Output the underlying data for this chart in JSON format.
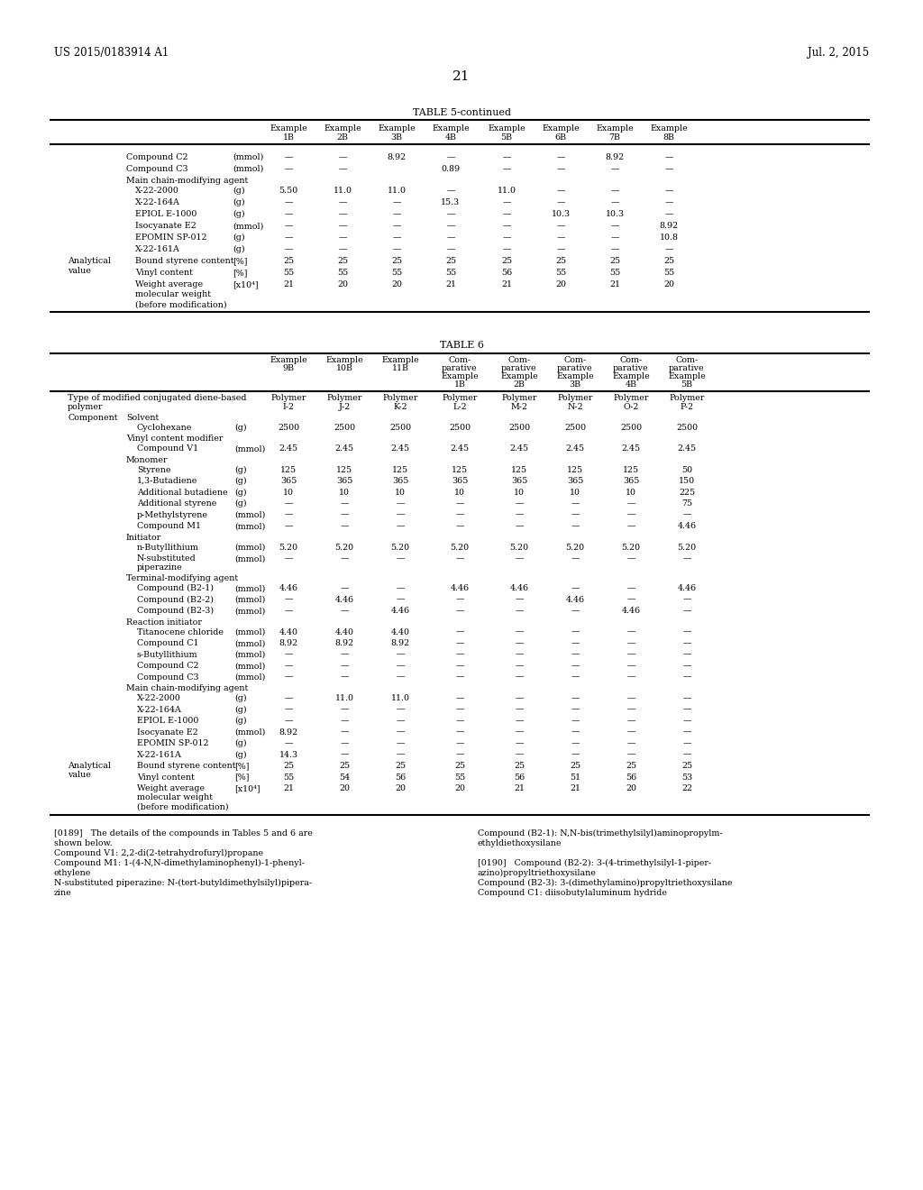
{
  "page_header_left": "US 2015/0183914 A1",
  "page_header_right": "Jul. 2, 2015",
  "page_number": "21",
  "table5_title": "TABLE 5-continued",
  "table6_title": "TABLE 6",
  "bg_color": "#ffffff",
  "text_color": "#000000",
  "fontsize_header": 8.5,
  "fontsize_page_num": 10,
  "fontsize_table": 6.8,
  "fontsize_footnote": 6.8,
  "table5_examples": [
    "Example\n1B",
    "Example\n2B",
    "Example\n3B",
    "Example\n4B",
    "Example\n5B",
    "Example\n6B",
    "Example\n7B",
    "Example\n8B"
  ],
  "table5_rows": [
    [
      "",
      "Compound C2",
      "(mmol)",
      "—",
      "—",
      "8.92",
      "—",
      "—",
      "—",
      "8.92",
      "—"
    ],
    [
      "",
      "Compound C3",
      "(mmol)",
      "—",
      "—",
      "",
      "0.89",
      "—",
      "—",
      "—",
      "—"
    ],
    [
      "",
      "Main chain-modifying agent",
      "",
      "",
      "",
      "",
      "",
      "",
      "",
      "",
      ""
    ],
    [
      "",
      "X-22-2000",
      "(g)",
      "5.50",
      "11.0",
      "11.0",
      "—",
      "11.0",
      "—",
      "—",
      "—"
    ],
    [
      "",
      "X-22-164A",
      "(g)",
      "—",
      "—",
      "—",
      "15.3",
      "—",
      "—",
      "—",
      "—"
    ],
    [
      "",
      "EPIOL E-1000",
      "(g)",
      "—",
      "—",
      "—",
      "—",
      "—",
      "10.3",
      "10.3",
      "—"
    ],
    [
      "",
      "Isocyanate E2",
      "(mmol)",
      "—",
      "—",
      "—",
      "—",
      "—",
      "—",
      "—",
      "8.92"
    ],
    [
      "",
      "EPOMIN SP-012",
      "(g)",
      "—",
      "—",
      "—",
      "—",
      "—",
      "—",
      "—",
      "10.8"
    ],
    [
      "",
      "X-22-161A",
      "(g)",
      "—",
      "—",
      "—",
      "—",
      "—",
      "—",
      "—",
      "—"
    ],
    [
      "Analytical\nvalue",
      "Bound styrene content",
      "[%]",
      "25",
      "25",
      "25",
      "25",
      "25",
      "25",
      "25",
      "25"
    ],
    [
      "",
      "Vinyl content",
      "[%]",
      "55",
      "55",
      "55",
      "55",
      "56",
      "55",
      "55",
      "55"
    ],
    [
      "",
      "Weight average\nmolecular weight\n(before modification)",
      "[x10⁴]",
      "21",
      "20",
      "20",
      "21",
      "21",
      "20",
      "21",
      "20"
    ]
  ],
  "table6_examples": [
    "Example\n9B",
    "Example\n10B",
    "Example\n11B",
    "Com-\nparative\nExample\n1B",
    "Com-\nparative\nExample\n2B",
    "Com-\nparative\nExample\n3B",
    "Com-\nparative\nExample\n4B",
    "Com-\nparative\nExample\n5B"
  ],
  "table6_rows": [
    [
      "Type of modified conjugated diene-based\npolymer",
      "",
      "",
      "Polymer\nI-2",
      "Polymer\nJ-2",
      "Polymer\nK-2",
      "Polymer\nL-2",
      "Polymer\nM-2",
      "Polymer\nN-2",
      "Polymer\nO-2",
      "Polymer\nP-2"
    ],
    [
      "Component",
      "Solvent",
      "",
      "",
      "",
      "",
      "",
      "",
      "",
      "",
      ""
    ],
    [
      "",
      "Cyclohexane",
      "(g)",
      "2500",
      "2500",
      "2500",
      "2500",
      "2500",
      "2500",
      "2500",
      "2500"
    ],
    [
      "",
      "Vinyl content modifier",
      "",
      "",
      "",
      "",
      "",
      "",
      "",
      "",
      ""
    ],
    [
      "",
      "Compound V1",
      "(mmol)",
      "2.45",
      "2.45",
      "2.45",
      "2.45",
      "2.45",
      "2.45",
      "2.45",
      "2.45"
    ],
    [
      "",
      "Monomer",
      "",
      "",
      "",
      "",
      "",
      "",
      "",
      "",
      ""
    ],
    [
      "",
      "Styrene",
      "(g)",
      "125",
      "125",
      "125",
      "125",
      "125",
      "125",
      "125",
      "50"
    ],
    [
      "",
      "1,3-Butadiene",
      "(g)",
      "365",
      "365",
      "365",
      "365",
      "365",
      "365",
      "365",
      "150"
    ],
    [
      "",
      "Additional butadiene",
      "(g)",
      "10",
      "10",
      "10",
      "10",
      "10",
      "10",
      "10",
      "225"
    ],
    [
      "",
      "Additional styrene",
      "(g)",
      "—",
      "—",
      "—",
      "—",
      "—",
      "—",
      "—",
      "75"
    ],
    [
      "",
      "p-Methylstyrene",
      "(mmol)",
      "—",
      "—",
      "—",
      "—",
      "—",
      "—",
      "—",
      "—"
    ],
    [
      "",
      "Compound M1",
      "(mmol)",
      "—",
      "—",
      "—",
      "—",
      "—",
      "—",
      "—",
      "4.46"
    ],
    [
      "",
      "Initiator",
      "",
      "",
      "",
      "",
      "",
      "",
      "",
      "",
      ""
    ],
    [
      "",
      "n-Butyllithium",
      "(mmol)",
      "5.20",
      "5.20",
      "5.20",
      "5.20",
      "5.20",
      "5.20",
      "5.20",
      "5.20"
    ],
    [
      "",
      "N-substituted\npiperazine",
      "(mmol)",
      "—",
      "—",
      "—",
      "—",
      "—",
      "—",
      "—",
      "—"
    ],
    [
      "",
      "Terminal-modifying agent",
      "",
      "",
      "",
      "",
      "",
      "",
      "",
      "",
      ""
    ],
    [
      "",
      "Compound (B2-1)",
      "(mmol)",
      "4.46",
      "—",
      "—",
      "4.46",
      "4.46",
      "—",
      "—",
      "4.46"
    ],
    [
      "",
      "Compound (B2-2)",
      "(mmol)",
      "—",
      "4.46",
      "—",
      "—",
      "—",
      "4.46",
      "—",
      "—"
    ],
    [
      "",
      "Compound (B2-3)",
      "(mmol)",
      "—",
      "—",
      "4.46",
      "—",
      "—",
      "—",
      "4.46",
      "—"
    ],
    [
      "",
      "Reaction initiator",
      "",
      "",
      "",
      "",
      "",
      "",
      "",
      "",
      ""
    ],
    [
      "",
      "Titanocene chloride",
      "(mmol)",
      "4.40",
      "4.40",
      "4.40",
      "—",
      "—",
      "—",
      "—",
      "—"
    ],
    [
      "",
      "Compound C1",
      "(mmol)",
      "8.92",
      "8.92",
      "8.92",
      "—",
      "—",
      "—",
      "—",
      "—"
    ],
    [
      "",
      "s-Butyllithium",
      "(mmol)",
      "—",
      "—",
      "—",
      "—",
      "—",
      "—",
      "—",
      "—"
    ],
    [
      "",
      "Compound C2",
      "(mmol)",
      "—",
      "—",
      "—",
      "—",
      "—",
      "—",
      "—",
      "—"
    ],
    [
      "",
      "Compound C3",
      "(mmol)",
      "—",
      "—",
      "—",
      "—",
      "—",
      "—",
      "—",
      "—"
    ],
    [
      "",
      "Main chain-modifying agent",
      "",
      "",
      "",
      "",
      "",
      "",
      "",
      "",
      ""
    ],
    [
      "",
      "X-22-2000",
      "(g)",
      "—",
      "11.0",
      "11.0",
      "—",
      "—",
      "—",
      "—",
      "—"
    ],
    [
      "",
      "X-22-164A",
      "(g)",
      "—",
      "—",
      "—",
      "—",
      "—",
      "—",
      "—",
      "—"
    ],
    [
      "",
      "EPIOL E-1000",
      "(g)",
      "—",
      "—",
      "—",
      "—",
      "—",
      "—",
      "—",
      "—"
    ],
    [
      "",
      "Isocyanate E2",
      "(mmol)",
      "8.92",
      "—",
      "—",
      "—",
      "—",
      "—",
      "—",
      "—"
    ],
    [
      "",
      "EPOMIN SP-012",
      "(g)",
      "—",
      "—",
      "—",
      "—",
      "—",
      "—",
      "—",
      "—"
    ],
    [
      "",
      "X-22-161A",
      "(g)",
      "14.3",
      "—",
      "—",
      "—",
      "—",
      "—",
      "—",
      "—"
    ],
    [
      "Analytical\nvalue",
      "Bound styrene content",
      "[%]",
      "25",
      "25",
      "25",
      "25",
      "25",
      "25",
      "25",
      "25"
    ],
    [
      "",
      "Vinyl content",
      "[%]",
      "55",
      "54",
      "56",
      "55",
      "56",
      "51",
      "56",
      "53"
    ],
    [
      "",
      "Weight average\nmolecular weight\n(before modification)",
      "[x10⁴]",
      "21",
      "20",
      "20",
      "20",
      "21",
      "21",
      "20",
      "22"
    ]
  ],
  "section_headers": [
    "Solvent",
    "Vinyl content modifier",
    "Monomer",
    "Initiator",
    "Terminal-modifying agent",
    "Reaction initiator",
    "Main chain-modifying agent"
  ],
  "footnotes_left": [
    "[0189]   The details of the compounds in Tables 5 and 6 are",
    "shown below.",
    "Compound V1: 2,2-di(2-tetrahydrofuryl)propane",
    "Compound M1: 1-(4-N,N-dimethylaminophenyl)-1-phenyl-",
    "ethylene",
    "N-substituted piperazine: N-(tert-butyldimethylsilyl)pipera-",
    "zine"
  ],
  "footnotes_right": [
    "Compound (B2-1): N,N-bis(trimethylsilyl)aminopropylm-",
    "ethyldiethoxysilane",
    "",
    "[0190]   Compound (B2-2): 3-(4-trimethylsilyl-1-piper-",
    "azino)propyltriethoxysilane",
    "Compound (B2-3): 3-(dimethylamino)propyltriethoxysilane",
    "Compound C1: diisobutylaluminum hydride"
  ]
}
